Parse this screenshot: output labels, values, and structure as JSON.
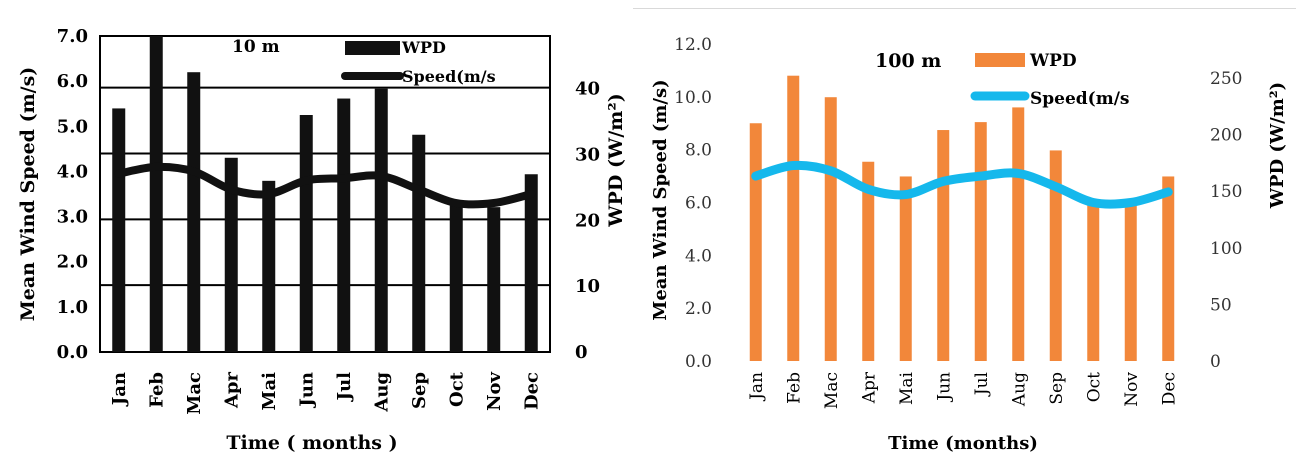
{
  "colors": {
    "left_bar": "#111111",
    "left_line": "#111111",
    "right_bar": "#f2873a",
    "right_line": "#15b8ec",
    "axis": "#000000",
    "tick_text": "#333333"
  },
  "chart_data": [
    {
      "type": "bar",
      "title": "10 m",
      "xlabel": "Time ( months )",
      "ylabel": "Mean Wind Speed (m/s)",
      "y2label": "WPD (W/m²)",
      "categories": [
        "Jan",
        "Feb",
        "Mac",
        "Apr",
        "Mai",
        "Jun",
        "Jul",
        "Aug",
        "Sep",
        "Oct",
        "Nov",
        "Dec"
      ],
      "y_ticks": [
        "0.0",
        "1.0",
        "2.0",
        "3.0",
        "4.0",
        "5.0",
        "6.0",
        "7.0"
      ],
      "y2_ticks": [
        "0",
        "10",
        "20",
        "30",
        "40"
      ],
      "ylim": [
        0,
        7
      ],
      "y2lim": [
        0,
        48
      ],
      "series": [
        {
          "name": "WPD",
          "axis": "right",
          "kind": "bar",
          "values": [
            37,
            48,
            42.5,
            29.5,
            26,
            36,
            38.5,
            40,
            33,
            23,
            22,
            27
          ]
        },
        {
          "name": "Speed(m/s",
          "axis": "left",
          "kind": "line",
          "values": [
            3.95,
            4.1,
            4.0,
            3.6,
            3.5,
            3.8,
            3.85,
            3.9,
            3.6,
            3.3,
            3.3,
            3.5
          ]
        }
      ],
      "legend_position": "top-center",
      "grid": "horizontal lines"
    },
    {
      "type": "bar",
      "title": "100 m",
      "xlabel": "Time (months)",
      "ylabel": "Mean  Wind Speed  (m/s)",
      "y2label": "WPD (W/m²)",
      "categories": [
        "Jan",
        "Feb",
        "Mac",
        "Apr",
        "Mai",
        "Jun",
        "Jul",
        "Aug",
        "Sep",
        "Oct",
        "Nov",
        "Dec"
      ],
      "y_ticks": [
        "0.0",
        "2.0",
        "4.0",
        "6.0",
        "8.0",
        "10.0",
        "12.0"
      ],
      "y2_ticks": [
        "0",
        "50",
        "100",
        "150",
        "200",
        "250"
      ],
      "ylim": [
        0,
        12
      ],
      "y2lim": [
        0,
        280
      ],
      "series": [
        {
          "name": "WPD",
          "axis": "right",
          "kind": "bar",
          "values": [
            210,
            252,
            233,
            176,
            163,
            204,
            211,
            224,
            186,
            142,
            142,
            163
          ]
        },
        {
          "name": "Speed(m/s",
          "axis": "left",
          "kind": "line",
          "values": [
            7.0,
            7.4,
            7.2,
            6.5,
            6.3,
            6.8,
            7.0,
            7.1,
            6.6,
            6.0,
            6.0,
            6.4
          ]
        }
      ],
      "legend_position": "top-center",
      "grid": "none"
    }
  ]
}
